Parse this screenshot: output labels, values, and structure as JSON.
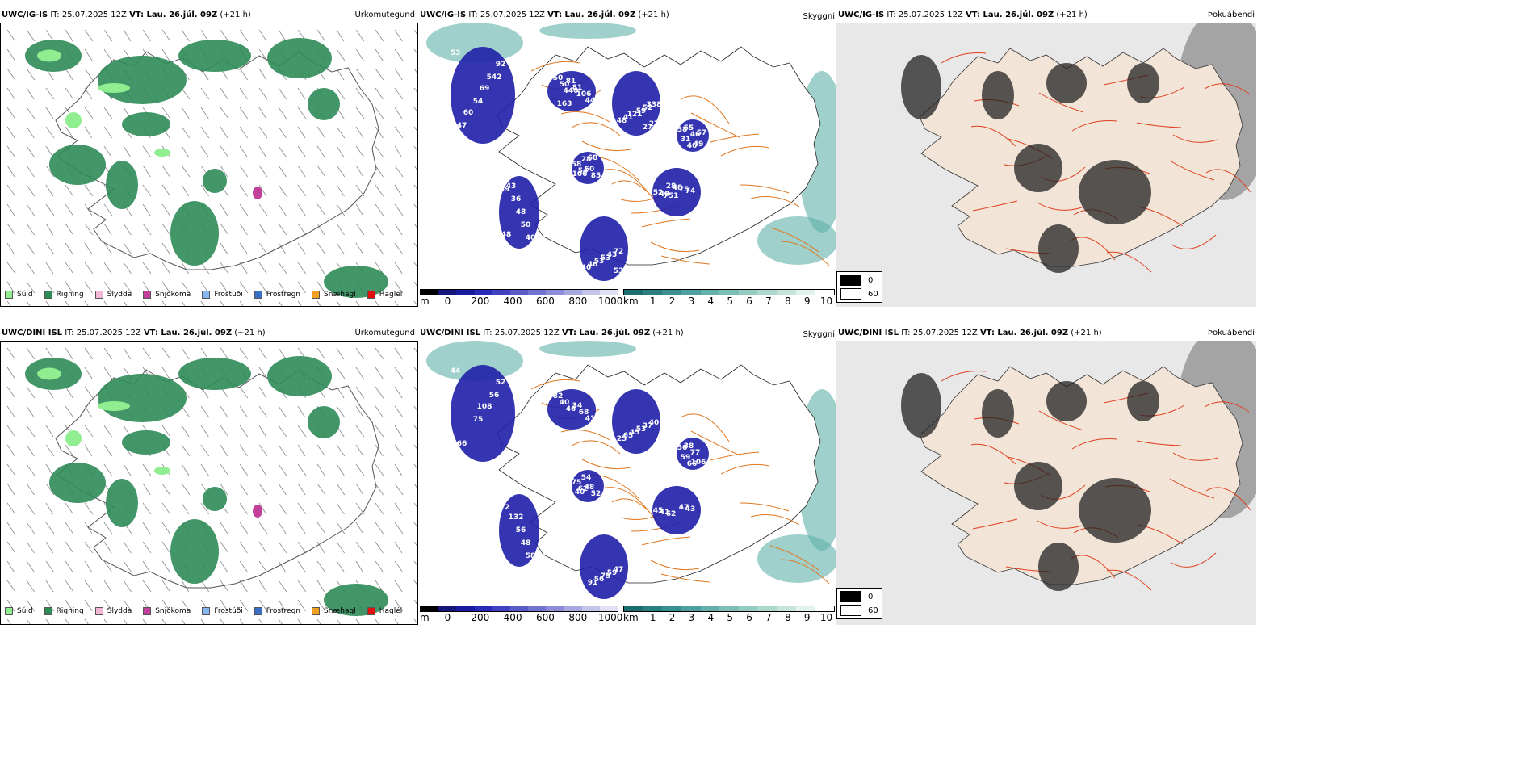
{
  "rows": [
    {
      "model": "UWC/IG-IS",
      "init": "IT: 25.07.2025 12Z",
      "vt_label": "VT: Lau. 26.júl. 09Z",
      "lead": "(+21 h)",
      "panels": [
        "Úrkomutegund",
        "Skyggni",
        "Þokuábendi"
      ],
      "cloud_labels": [
        "53",
        "440",
        "338",
        "46",
        "54",
        "59",
        "72",
        "751",
        "542",
        "50",
        "52",
        "58",
        "85",
        "40",
        "43",
        "40",
        "54",
        "50",
        "59",
        "46",
        "28",
        "50",
        "53",
        "52",
        "47",
        "44",
        "121",
        "31",
        "58",
        "48",
        "53",
        "74",
        "92",
        "106",
        "41",
        "49",
        "50",
        "36",
        "46",
        "75",
        "69",
        "81",
        "48",
        "55",
        "106",
        "43",
        "40",
        "48",
        "60",
        "81",
        "27",
        "57",
        "68",
        "48",
        "53",
        "28",
        "28",
        "163",
        "27"
      ]
    },
    {
      "model": "UWC/DINI ISL",
      "init": "IT: 25.07.2025 12Z",
      "vt_label": "VT: Lau. 26.júl. 09Z",
      "lead": "(+21 h)",
      "panels": [
        "Úrkomutegund",
        "Skyggni",
        "Þokuábendi"
      ],
      "cloud_labels": [
        "44",
        "46",
        "40",
        "66",
        "62",
        "72",
        "47",
        "62",
        "56",
        "40",
        "37",
        "56",
        "52",
        "58",
        "59",
        "41",
        "75",
        "82",
        "53",
        "77",
        "54",
        "48",
        "75",
        "45",
        "66",
        "41",
        "45",
        "59",
        "75",
        "56",
        "56",
        "43",
        "52",
        "68",
        "65",
        "106",
        "48",
        "132",
        "91",
        "47",
        "108",
        "34",
        "25",
        "38",
        "40"
      ]
    }
  ],
  "precip_legend": [
    {
      "label": "Súld",
      "color": "#90ee90"
    },
    {
      "label": "Rigning",
      "color": "#2e8b57"
    },
    {
      "label": "Slydda",
      "color": "#f4b6d6"
    },
    {
      "label": "Snjókoma",
      "color": "#c2409a"
    },
    {
      "label": "Frostúði",
      "color": "#87b5ee"
    },
    {
      "label": "Frostregn",
      "color": "#3a6fc6"
    },
    {
      "label": "Snæhagl",
      "color": "#f0a020"
    },
    {
      "label": "Haglél",
      "color": "#e01010"
    }
  ],
  "cloud_base_bar": {
    "unit": "m",
    "ticks": [
      "0",
      "200",
      "400",
      "600",
      "800",
      "1000"
    ],
    "colors": [
      "#000000",
      "#14147a",
      "#1a1aa0",
      "#2a2ab8",
      "#4040c0",
      "#5a5ac8",
      "#7272d0",
      "#8c8cd8",
      "#a8a8e0",
      "#c4c4e8",
      "#e0e0f4"
    ]
  },
  "visibility_bar": {
    "unit": "km",
    "ticks": [
      "1",
      "2",
      "3",
      "4",
      "5",
      "6",
      "7",
      "8",
      "9",
      "10"
    ],
    "colors": [
      "#1c6e6e",
      "#2a8080",
      "#3a9090",
      "#4ea0a0",
      "#64b0aa",
      "#7cbeb6",
      "#94ccc2",
      "#acd8ce",
      "#c6e4dc",
      "#e2f2ee",
      "#ffffff"
    ]
  },
  "fog_legend": [
    {
      "label": "0",
      "color": "#000000"
    },
    {
      "label": "60",
      "color": "#ffffff"
    }
  ],
  "colors": {
    "rain": "#2e8b57",
    "drizzle": "#90ee90",
    "snow": "#c2409a",
    "cloud_blue": "#1f1fa8",
    "vis_teal": "#5fb0a8",
    "road_orange": "#e07820",
    "road_red": "#e04020",
    "land": "#f2e4d6"
  }
}
